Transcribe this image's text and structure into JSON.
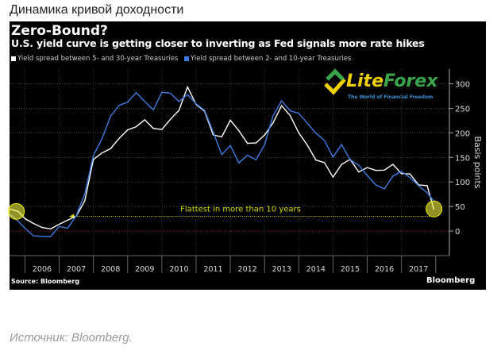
{
  "heading": "Динамика кривой доходности",
  "caption": "Источник: Bloomberg.",
  "logo": {
    "name_part1": "Lite",
    "name_part2": "Forex",
    "tagline": "The World of Financial Freedom"
  },
  "colors": {
    "white_series": "#ffffff",
    "blue_series": "#3d7be0",
    "annotation": "#d8d800",
    "zero_line": "#b02030"
  },
  "chart_data": {
    "type": "line",
    "title": "Zero-Bound?",
    "subtitle": "U.S. yield curve is getting closer to inverting as Fed signals more rate hikes",
    "ylabel": "Basis points",
    "ylim": [
      -50,
      330
    ],
    "xlim": [
      2005.55,
      2018.4
    ],
    "yticks": [
      0,
      50,
      100,
      150,
      200,
      250,
      300
    ],
    "xticks": [
      "2006",
      "2007",
      "2008",
      "2009",
      "2010",
      "2011",
      "2012",
      "2013",
      "2014",
      "2015",
      "2016",
      "2017"
    ],
    "annotation": "Flattest in more than 10 years",
    "annotation_value": 30,
    "source": "Source: Bloomberg",
    "brand": "Bloomberg",
    "series": [
      {
        "name": "Yield spread between 5- and 30-year Treasuries",
        "color": "#ffffff",
        "x": [
          2005.55,
          2005.8,
          2006,
          2006.25,
          2006.5,
          2006.75,
          2007,
          2007.25,
          2007.5,
          2007.75,
          2008,
          2008.25,
          2008.5,
          2008.75,
          2009,
          2009.25,
          2009.5,
          2009.75,
          2010,
          2010.25,
          2010.5,
          2010.75,
          2011,
          2011.25,
          2011.5,
          2011.75,
          2012,
          2012.25,
          2012.5,
          2012.75,
          2013,
          2013.25,
          2013.5,
          2013.75,
          2014,
          2014.25,
          2014.5,
          2014.75,
          2015,
          2015.25,
          2015.5,
          2015.75,
          2016,
          2016.25,
          2016.5,
          2016.75,
          2017,
          2017.25,
          2017.5,
          2017.75,
          2017.95
        ],
        "y": [
          45,
          35,
          20,
          15,
          12,
          10,
          15,
          18,
          25,
          60,
          150,
          165,
          170,
          185,
          200,
          210,
          230,
          215,
          210,
          225,
          240,
          290,
          260,
          250,
          200,
          190,
          220,
          200,
          180,
          185,
          200,
          220,
          250,
          230,
          200,
          180,
          150,
          140,
          105,
          130,
          145,
          125,
          135,
          125,
          120,
          130,
          115,
          120,
          100,
          95,
          40
        ]
      },
      {
        "name": "Yield spread between 2- and 10-year Treasuries",
        "color": "#3d7be0",
        "x": [
          2005.55,
          2005.8,
          2006,
          2006.25,
          2006.5,
          2006.75,
          2007,
          2007.25,
          2007.5,
          2007.75,
          2008,
          2008.25,
          2008.5,
          2008.75,
          2009,
          2009.25,
          2009.5,
          2009.75,
          2010,
          2010.25,
          2010.5,
          2010.75,
          2011,
          2011.25,
          2011.5,
          2011.75,
          2012,
          2012.25,
          2012.5,
          2012.75,
          2013,
          2013.25,
          2013.5,
          2013.75,
          2014,
          2014.25,
          2014.5,
          2014.75,
          2015,
          2015.25,
          2015.5,
          2015.75,
          2016,
          2016.25,
          2016.5,
          2016.75,
          2017,
          2017.25,
          2017.5,
          2017.75,
          2017.95
        ],
        "y": [
          30,
          15,
          5,
          -5,
          -5,
          -10,
          5,
          0,
          30,
          80,
          160,
          190,
          230,
          250,
          260,
          285,
          270,
          250,
          280,
          275,
          260,
          280,
          265,
          250,
          200,
          150,
          170,
          140,
          160,
          150,
          175,
          230,
          260,
          245,
          245,
          225,
          200,
          180,
          145,
          175,
          150,
          140,
          115,
          90,
          80,
          110,
          125,
          115,
          95,
          75,
          55
        ]
      }
    ]
  }
}
